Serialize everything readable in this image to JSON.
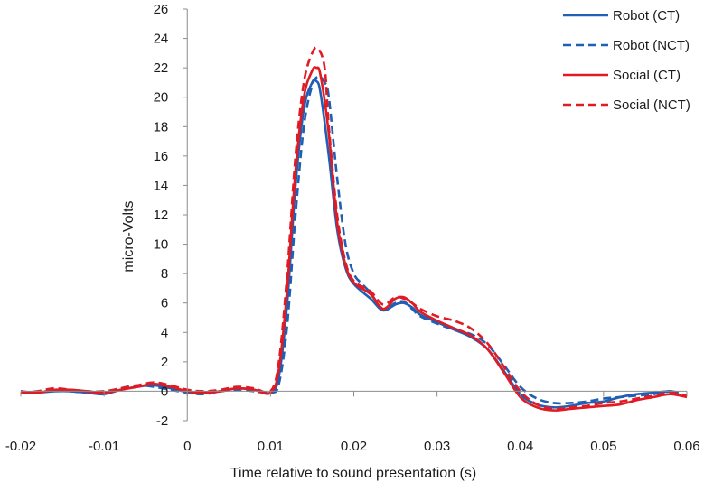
{
  "chart_data": {
    "type": "line",
    "title": "",
    "xlabel": "Time relative to sound presentation (s)",
    "ylabel": "micro-Volts",
    "xlim": [
      -0.02,
      0.06
    ],
    "ylim": [
      -2,
      26
    ],
    "xticks": [
      -0.02,
      -0.01,
      0,
      0.01,
      0.02,
      0.03,
      0.04,
      0.05,
      0.06
    ],
    "xtick_labels": [
      "-0.02",
      "-0.01",
      "0",
      "0.01",
      "0.02",
      "0.03",
      "0.04",
      "0.05",
      "0.06"
    ],
    "yticks": [
      -2,
      0,
      2,
      4,
      6,
      8,
      10,
      12,
      14,
      16,
      18,
      20,
      22,
      24,
      26
    ],
    "ytick_labels": [
      "-2",
      "0",
      "2",
      "4",
      "6",
      "8",
      "10",
      "12",
      "14",
      "16",
      "18",
      "20",
      "22",
      "24",
      "26"
    ],
    "grid": false,
    "legend_position": "top-right",
    "series": [
      {
        "name": "Robot (CT)",
        "color": "#1f5fb4",
        "dash": "solid",
        "x": [
          -0.02,
          -0.018,
          -0.016,
          -0.014,
          -0.012,
          -0.01,
          -0.008,
          -0.006,
          -0.004,
          -0.002,
          0,
          0.002,
          0.004,
          0.006,
          0.008,
          0.01,
          0.011,
          0.012,
          0.013,
          0.014,
          0.015,
          0.0155,
          0.016,
          0.017,
          0.018,
          0.019,
          0.02,
          0.022,
          0.0235,
          0.025,
          0.026,
          0.027,
          0.028,
          0.03,
          0.032,
          0.034,
          0.036,
          0.038,
          0.04,
          0.042,
          0.044,
          0.046,
          0.048,
          0.05,
          0.052,
          0.054,
          0.056,
          0.058,
          0.059
        ],
        "y": [
          -0.1,
          -0.1,
          0.0,
          0.0,
          -0.1,
          -0.2,
          0.1,
          0.3,
          0.4,
          0.2,
          -0.05,
          -0.1,
          0.0,
          0.2,
          0.1,
          -0.1,
          1.0,
          6.0,
          14.0,
          19.2,
          21.0,
          21.1,
          20.3,
          16.0,
          11.0,
          8.4,
          7.3,
          6.3,
          5.5,
          5.9,
          6.0,
          5.7,
          5.2,
          4.7,
          4.2,
          3.7,
          2.9,
          1.4,
          -0.2,
          -0.9,
          -1.1,
          -1.0,
          -0.8,
          -0.7,
          -0.4,
          -0.2,
          -0.1,
          0.0,
          -0.1
        ]
      },
      {
        "name": "Robot (NCT)",
        "color": "#1f5fb4",
        "dash": "dashed",
        "x": [
          -0.02,
          -0.018,
          -0.016,
          -0.014,
          -0.012,
          -0.01,
          -0.008,
          -0.006,
          -0.004,
          -0.002,
          0,
          0.002,
          0.004,
          0.006,
          0.008,
          0.01,
          0.011,
          0.012,
          0.013,
          0.014,
          0.015,
          0.0158,
          0.0165,
          0.017,
          0.018,
          0.019,
          0.02,
          0.021,
          0.022,
          0.0235,
          0.025,
          0.026,
          0.027,
          0.028,
          0.03,
          0.032,
          0.034,
          0.036,
          0.038,
          0.04,
          0.042,
          0.044,
          0.046,
          0.048,
          0.05,
          0.052,
          0.054,
          0.056,
          0.058,
          0.059
        ],
        "y": [
          0.0,
          -0.1,
          0.1,
          0.0,
          -0.1,
          -0.1,
          0.2,
          0.4,
          0.3,
          0.1,
          -0.1,
          -0.2,
          0.0,
          0.1,
          0.0,
          -0.1,
          0.5,
          4.5,
          12.0,
          18.0,
          20.8,
          21.4,
          21.0,
          20.0,
          14.5,
          10.0,
          8.0,
          7.3,
          6.7,
          5.6,
          6.0,
          6.1,
          5.6,
          5.1,
          4.6,
          4.2,
          3.9,
          3.2,
          1.8,
          0.3,
          -0.5,
          -0.8,
          -0.8,
          -0.7,
          -0.5,
          -0.4,
          -0.3,
          -0.2,
          0.0,
          -0.2
        ]
      },
      {
        "name": "Social (CT)",
        "color": "#e01b24",
        "dash": "solid",
        "x": [
          -0.02,
          -0.018,
          -0.016,
          -0.014,
          -0.012,
          -0.01,
          -0.008,
          -0.006,
          -0.004,
          -0.002,
          0,
          0.002,
          0.004,
          0.006,
          0.008,
          0.01,
          0.011,
          0.012,
          0.013,
          0.014,
          0.015,
          0.0155,
          0.016,
          0.017,
          0.018,
          0.019,
          0.02,
          0.022,
          0.0235,
          0.025,
          0.026,
          0.027,
          0.028,
          0.03,
          0.032,
          0.034,
          0.036,
          0.038,
          0.04,
          0.042,
          0.044,
          0.046,
          0.048,
          0.05,
          0.052,
          0.054,
          0.056,
          0.058,
          0.06
        ],
        "y": [
          0.0,
          -0.1,
          0.1,
          0.1,
          0.0,
          -0.1,
          0.1,
          0.3,
          0.5,
          0.3,
          0.0,
          -0.1,
          0.0,
          0.2,
          0.1,
          -0.1,
          1.5,
          7.0,
          15.0,
          20.0,
          21.8,
          22.0,
          21.5,
          17.5,
          11.5,
          8.6,
          7.4,
          6.6,
          5.6,
          6.3,
          6.4,
          6.0,
          5.4,
          4.8,
          4.3,
          3.8,
          2.9,
          1.3,
          -0.4,
          -1.1,
          -1.3,
          -1.2,
          -1.1,
          -1.0,
          -0.9,
          -0.6,
          -0.4,
          -0.2,
          -0.4
        ]
      },
      {
        "name": "Social (NCT)",
        "color": "#e01b24",
        "dash": "dashed",
        "x": [
          -0.02,
          -0.018,
          -0.016,
          -0.014,
          -0.012,
          -0.01,
          -0.008,
          -0.006,
          -0.004,
          -0.002,
          0,
          0.002,
          0.004,
          0.006,
          0.008,
          0.01,
          0.011,
          0.012,
          0.013,
          0.014,
          0.015,
          0.0157,
          0.0165,
          0.017,
          0.018,
          0.019,
          0.02,
          0.022,
          0.0235,
          0.025,
          0.026,
          0.027,
          0.028,
          0.03,
          0.032,
          0.034,
          0.036,
          0.038,
          0.04,
          0.042,
          0.044,
          0.046,
          0.048,
          0.05,
          0.052,
          0.054,
          0.056,
          0.058,
          0.06
        ],
        "y": [
          -0.1,
          0.0,
          0.2,
          0.1,
          0.0,
          0.0,
          0.2,
          0.4,
          0.6,
          0.4,
          0.1,
          0.0,
          0.1,
          0.3,
          0.2,
          0.0,
          2.0,
          8.0,
          16.0,
          21.0,
          23.0,
          23.3,
          22.0,
          18.0,
          12.0,
          8.8,
          7.5,
          6.8,
          5.9,
          6.4,
          6.3,
          6.0,
          5.6,
          5.1,
          4.8,
          4.3,
          3.3,
          1.7,
          0.0,
          -0.9,
          -1.2,
          -1.1,
          -1.0,
          -0.8,
          -0.7,
          -0.5,
          -0.3,
          -0.1,
          -0.3
        ]
      }
    ]
  }
}
